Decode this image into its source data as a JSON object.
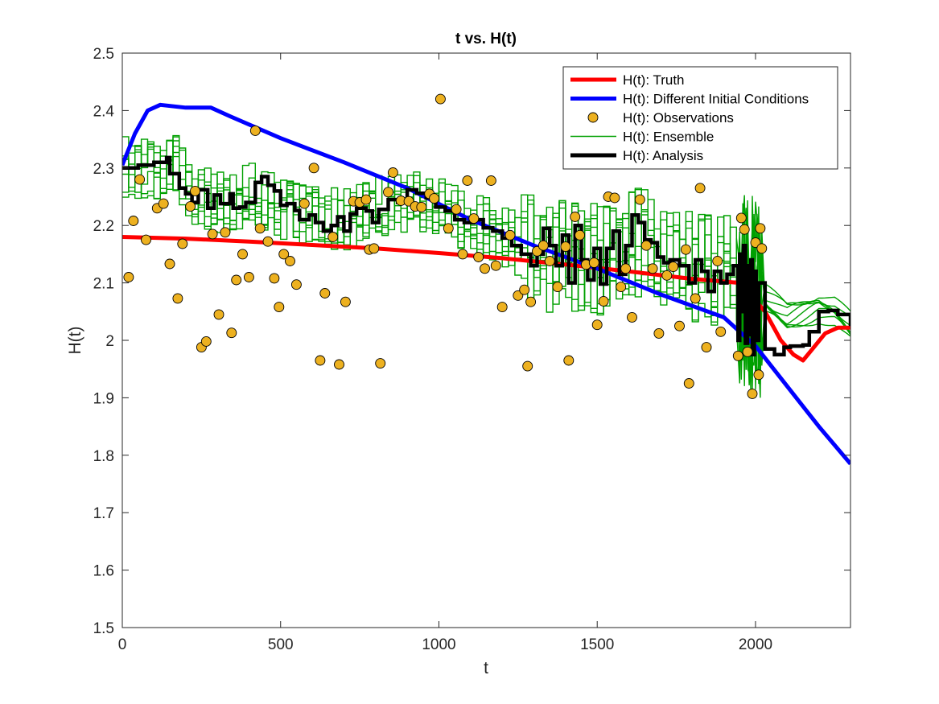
{
  "chart_data": {
    "type": "line",
    "title": "t vs. H(t)",
    "xlabel": "t",
    "ylabel": "H(t)",
    "xlim": [
      0,
      2300
    ],
    "ylim": [
      1.5,
      2.5
    ],
    "xticks": [
      0,
      500,
      1000,
      1500,
      2000
    ],
    "yticks": [
      1.5,
      1.6,
      1.7,
      1.8,
      1.9,
      2.0,
      2.1,
      2.2,
      2.3,
      2.4,
      2.5
    ],
    "xtick_labels": [
      "0",
      "500",
      "1000",
      "1500",
      "2000"
    ],
    "ytick_labels": [
      "1.5",
      "1.6",
      "1.7",
      "1.8",
      "1.9",
      "2",
      "2.1",
      "2.2",
      "2.3",
      "2.4",
      "2.5"
    ],
    "grid": false,
    "legend_position": "top-right",
    "series": [
      {
        "name": "H(t): Truth",
        "kind": "line",
        "color": "#ff0000",
        "points": [
          [
            0,
            2.18
          ],
          [
            200,
            2.177
          ],
          [
            400,
            2.172
          ],
          [
            600,
            2.166
          ],
          [
            800,
            2.16
          ],
          [
            1000,
            2.152
          ],
          [
            1200,
            2.143
          ],
          [
            1400,
            2.132
          ],
          [
            1600,
            2.12
          ],
          [
            1800,
            2.107
          ],
          [
            1950,
            2.1
          ],
          [
            2030,
            2.05
          ],
          [
            2080,
            2.0
          ],
          [
            2120,
            1.975
          ],
          [
            2150,
            1.965
          ],
          [
            2180,
            1.985
          ],
          [
            2220,
            2.012
          ],
          [
            2260,
            2.022
          ],
          [
            2300,
            2.022
          ]
        ]
      },
      {
        "name": "H(t): Different Initial Conditions",
        "kind": "line",
        "color": "#0000ff",
        "points": [
          [
            0,
            2.305
          ],
          [
            40,
            2.36
          ],
          [
            80,
            2.4
          ],
          [
            120,
            2.41
          ],
          [
            200,
            2.405
          ],
          [
            280,
            2.405
          ],
          [
            340,
            2.39
          ],
          [
            500,
            2.352
          ],
          [
            700,
            2.31
          ],
          [
            900,
            2.265
          ],
          [
            1100,
            2.21
          ],
          [
            1300,
            2.165
          ],
          [
            1500,
            2.125
          ],
          [
            1700,
            2.08
          ],
          [
            1900,
            2.04
          ],
          [
            2000,
            1.99
          ],
          [
            2100,
            1.92
          ],
          [
            2200,
            1.85
          ],
          [
            2300,
            1.785
          ]
        ]
      },
      {
        "name": "H(t): Observations",
        "kind": "scatter",
        "color": "#edb120",
        "points": [
          [
            20,
            2.11
          ],
          [
            35,
            2.208
          ],
          [
            55,
            2.28
          ],
          [
            75,
            2.175
          ],
          [
            110,
            2.23
          ],
          [
            130,
            2.238
          ],
          [
            150,
            2.133
          ],
          [
            175,
            2.073
          ],
          [
            190,
            2.168
          ],
          [
            215,
            2.233
          ],
          [
            230,
            2.26
          ],
          [
            250,
            1.988
          ],
          [
            265,
            1.998
          ],
          [
            285,
            2.185
          ],
          [
            305,
            2.045
          ],
          [
            325,
            2.188
          ],
          [
            345,
            2.013
          ],
          [
            360,
            2.105
          ],
          [
            380,
            2.15
          ],
          [
            400,
            2.11
          ],
          [
            420,
            2.365
          ],
          [
            435,
            2.195
          ],
          [
            460,
            2.172
          ],
          [
            480,
            2.108
          ],
          [
            495,
            2.058
          ],
          [
            510,
            2.15
          ],
          [
            530,
            2.138
          ],
          [
            550,
            2.097
          ],
          [
            575,
            2.238
          ],
          [
            605,
            2.3
          ],
          [
            625,
            1.965
          ],
          [
            640,
            2.082
          ],
          [
            665,
            2.18
          ],
          [
            685,
            1.958
          ],
          [
            705,
            2.067
          ],
          [
            730,
            2.242
          ],
          [
            750,
            2.24
          ],
          [
            770,
            2.245
          ],
          [
            780,
            2.158
          ],
          [
            795,
            2.16
          ],
          [
            815,
            1.96
          ],
          [
            840,
            2.258
          ],
          [
            855,
            2.292
          ],
          [
            880,
            2.243
          ],
          [
            905,
            2.242
          ],
          [
            925,
            2.233
          ],
          [
            945,
            2.232
          ],
          [
            970,
            2.255
          ],
          [
            985,
            2.247
          ],
          [
            1005,
            2.42
          ],
          [
            1030,
            2.195
          ],
          [
            1055,
            2.228
          ],
          [
            1075,
            2.15
          ],
          [
            1090,
            2.278
          ],
          [
            1110,
            2.212
          ],
          [
            1125,
            2.145
          ],
          [
            1145,
            2.125
          ],
          [
            1165,
            2.278
          ],
          [
            1180,
            2.13
          ],
          [
            1200,
            2.058
          ],
          [
            1225,
            2.183
          ],
          [
            1250,
            2.078
          ],
          [
            1270,
            2.088
          ],
          [
            1280,
            1.955
          ],
          [
            1290,
            2.067
          ],
          [
            1310,
            2.155
          ],
          [
            1330,
            2.165
          ],
          [
            1350,
            2.138
          ],
          [
            1375,
            2.093
          ],
          [
            1400,
            2.163
          ],
          [
            1410,
            1.965
          ],
          [
            1430,
            2.215
          ],
          [
            1445,
            2.183
          ],
          [
            1465,
            2.132
          ],
          [
            1490,
            2.135
          ],
          [
            1500,
            2.027
          ],
          [
            1520,
            2.068
          ],
          [
            1535,
            2.25
          ],
          [
            1555,
            2.248
          ],
          [
            1575,
            2.093
          ],
          [
            1590,
            2.125
          ],
          [
            1610,
            2.04
          ],
          [
            1635,
            2.245
          ],
          [
            1655,
            2.165
          ],
          [
            1675,
            2.125
          ],
          [
            1695,
            2.012
          ],
          [
            1720,
            2.113
          ],
          [
            1740,
            2.128
          ],
          [
            1760,
            2.025
          ],
          [
            1780,
            2.158
          ],
          [
            1790,
            1.925
          ],
          [
            1810,
            2.073
          ],
          [
            1825,
            2.265
          ],
          [
            1845,
            1.988
          ],
          [
            1880,
            2.138
          ],
          [
            1890,
            2.015
          ],
          [
            1945,
            1.973
          ],
          [
            1955,
            2.213
          ],
          [
            1965,
            2.193
          ],
          [
            1975,
            1.98
          ],
          [
            1990,
            1.907
          ],
          [
            2000,
            2.17
          ],
          [
            2010,
            1.94
          ],
          [
            2015,
            2.195
          ],
          [
            2020,
            2.16
          ]
        ]
      },
      {
        "name": "H(t): Ensemble",
        "kind": "line",
        "color": "#00a000",
        "spread": 0.055,
        "points": [
          [
            0,
            2.3
          ],
          [
            100,
            2.3
          ],
          [
            160,
            2.31
          ],
          [
            220,
            2.25
          ],
          [
            300,
            2.24
          ],
          [
            400,
            2.255
          ],
          [
            500,
            2.23
          ],
          [
            600,
            2.215
          ],
          [
            700,
            2.21
          ],
          [
            800,
            2.235
          ],
          [
            900,
            2.245
          ],
          [
            1000,
            2.23
          ],
          [
            1100,
            2.205
          ],
          [
            1200,
            2.18
          ],
          [
            1300,
            2.15
          ],
          [
            1400,
            2.145
          ],
          [
            1500,
            2.14
          ],
          [
            1600,
            2.175
          ],
          [
            1700,
            2.15
          ],
          [
            1800,
            2.13
          ],
          [
            1900,
            2.12
          ],
          [
            1950,
            2.1
          ],
          [
            2000,
            2.08
          ],
          [
            2050,
            2.06
          ],
          [
            2100,
            2.04
          ],
          [
            2150,
            2.05
          ],
          [
            2200,
            2.06
          ],
          [
            2250,
            2.05
          ],
          [
            2300,
            2.02
          ]
        ]
      },
      {
        "name": "H(t): Analysis",
        "kind": "line",
        "color": "#000000",
        "points": [
          [
            0,
            2.3
          ],
          [
            50,
            2.305
          ],
          [
            100,
            2.31
          ],
          [
            140,
            2.318
          ],
          [
            150,
            2.29
          ],
          [
            180,
            2.265
          ],
          [
            200,
            2.255
          ],
          [
            220,
            2.24
          ],
          [
            240,
            2.262
          ],
          [
            270,
            2.23
          ],
          [
            290,
            2.253
          ],
          [
            310,
            2.238
          ],
          [
            340,
            2.255
          ],
          [
            350,
            2.23
          ],
          [
            370,
            2.232
          ],
          [
            390,
            2.24
          ],
          [
            420,
            2.275
          ],
          [
            440,
            2.285
          ],
          [
            460,
            2.27
          ],
          [
            480,
            2.26
          ],
          [
            500,
            2.235
          ],
          [
            520,
            2.238
          ],
          [
            545,
            2.226
          ],
          [
            560,
            2.21
          ],
          [
            590,
            2.218
          ],
          [
            610,
            2.205
          ],
          [
            635,
            2.19
          ],
          [
            660,
            2.2
          ],
          [
            680,
            2.215
          ],
          [
            700,
            2.19
          ],
          [
            720,
            2.22
          ],
          [
            740,
            2.23
          ],
          [
            770,
            2.225
          ],
          [
            790,
            2.205
          ],
          [
            810,
            2.228
          ],
          [
            840,
            2.245
          ],
          [
            870,
            2.24
          ],
          [
            900,
            2.262
          ],
          [
            930,
            2.256
          ],
          [
            960,
            2.248
          ],
          [
            990,
            2.232
          ],
          [
            1020,
            2.225
          ],
          [
            1050,
            2.21
          ],
          [
            1080,
            2.205
          ],
          [
            1110,
            2.21
          ],
          [
            1140,
            2.196
          ],
          [
            1170,
            2.19
          ],
          [
            1200,
            2.178
          ],
          [
            1230,
            2.165
          ],
          [
            1260,
            2.15
          ],
          [
            1290,
            2.13
          ],
          [
            1310,
            2.15
          ],
          [
            1330,
            2.195
          ],
          [
            1350,
            2.165
          ],
          [
            1370,
            2.13
          ],
          [
            1390,
            2.183
          ],
          [
            1410,
            2.1
          ],
          [
            1430,
            2.2
          ],
          [
            1450,
            2.14
          ],
          [
            1470,
            2.105
          ],
          [
            1490,
            2.16
          ],
          [
            1510,
            2.098
          ],
          [
            1530,
            2.16
          ],
          [
            1550,
            2.19
          ],
          [
            1570,
            2.115
          ],
          [
            1590,
            2.165
          ],
          [
            1610,
            2.218
          ],
          [
            1630,
            2.205
          ],
          [
            1650,
            2.175
          ],
          [
            1670,
            2.17
          ],
          [
            1690,
            2.145
          ],
          [
            1710,
            2.135
          ],
          [
            1730,
            2.14
          ],
          [
            1760,
            2.13
          ],
          [
            1790,
            2.1
          ],
          [
            1810,
            2.14
          ],
          [
            1830,
            2.12
          ],
          [
            1850,
            2.085
          ],
          [
            1870,
            2.12
          ],
          [
            1890,
            2.1
          ],
          [
            1910,
            2.115
          ],
          [
            1930,
            2.13
          ],
          [
            1945,
            2.0
          ],
          [
            1950,
            2.15
          ],
          [
            1955,
            2.05
          ],
          [
            1962,
            2.165
          ],
          [
            1968,
            1.995
          ],
          [
            1975,
            2.13
          ],
          [
            1980,
            2.01
          ],
          [
            1985,
            2.14
          ],
          [
            1990,
            1.975
          ],
          [
            1996,
            2.12
          ],
          [
            2002,
            2.0
          ],
          [
            2010,
            2.1
          ],
          [
            2030,
            1.985
          ],
          [
            2060,
            1.975
          ],
          [
            2090,
            1.988
          ],
          [
            2110,
            1.99
          ],
          [
            2130,
            1.99
          ],
          [
            2150,
            1.992
          ],
          [
            2170,
            2.015
          ],
          [
            2200,
            2.05
          ],
          [
            2230,
            2.052
          ],
          [
            2260,
            2.045
          ],
          [
            2300,
            2.025
          ]
        ]
      }
    ]
  }
}
